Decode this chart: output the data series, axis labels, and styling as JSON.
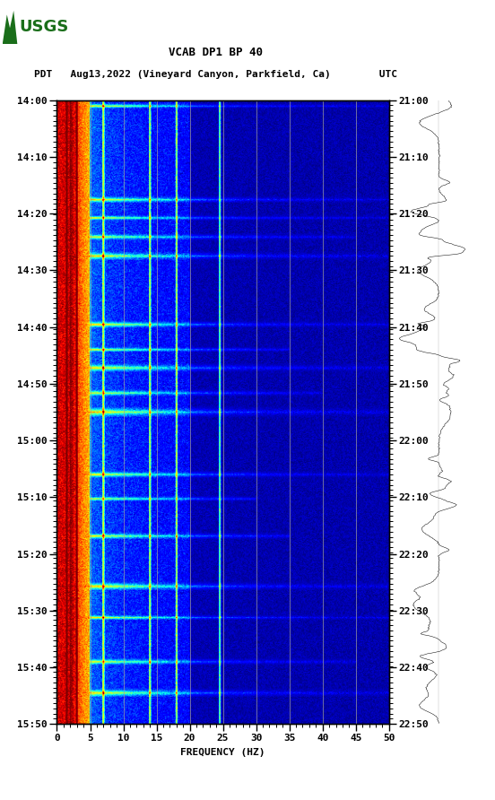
{
  "title_line1": "VCAB DP1 BP 40",
  "title_line2": "PDT   Aug13,2022 (Vineyard Canyon, Parkfield, Ca)        UTC",
  "xlabel": "FREQUENCY (HZ)",
  "freq_min": 0,
  "freq_max": 50,
  "pdt_ticks": [
    "14:00",
    "14:10",
    "14:20",
    "14:30",
    "14:40",
    "14:50",
    "15:00",
    "15:10",
    "15:20",
    "15:30",
    "15:40",
    "15:50"
  ],
  "utc_ticks": [
    "21:00",
    "21:10",
    "21:20",
    "21:30",
    "21:40",
    "21:50",
    "22:00",
    "22:10",
    "22:20",
    "22:30",
    "22:40",
    "22:50"
  ],
  "vertical_lines_freq": [
    5,
    10,
    15,
    20,
    25,
    30,
    35,
    40,
    45
  ],
  "background_color": "#ffffff",
  "n_time": 720,
  "n_freq": 500,
  "colormap": "jet",
  "logo_color": "#1a6e1a",
  "event_times": [
    0.01,
    0.16,
    0.19,
    0.22,
    0.25,
    0.36,
    0.4,
    0.43,
    0.47,
    0.5,
    0.6,
    0.64,
    0.7,
    0.78,
    0.83,
    0.9,
    0.95
  ],
  "event_freq_extents": [
    1.0,
    1.0,
    1.0,
    0.9,
    1.0,
    1.0,
    0.7,
    1.0,
    0.8,
    1.0,
    1.0,
    0.6,
    0.7,
    1.0,
    1.0,
    0.9,
    1.0
  ],
  "event_widths": [
    3,
    4,
    3,
    4,
    5,
    4,
    3,
    5,
    4,
    6,
    4,
    3,
    4,
    5,
    3,
    4,
    5
  ],
  "event_intensities": [
    0.85,
    0.9,
    0.85,
    0.8,
    0.9,
    0.95,
    0.85,
    0.9,
    0.8,
    0.95,
    0.9,
    0.8,
    0.85,
    0.95,
    0.9,
    0.85,
    0.9
  ]
}
